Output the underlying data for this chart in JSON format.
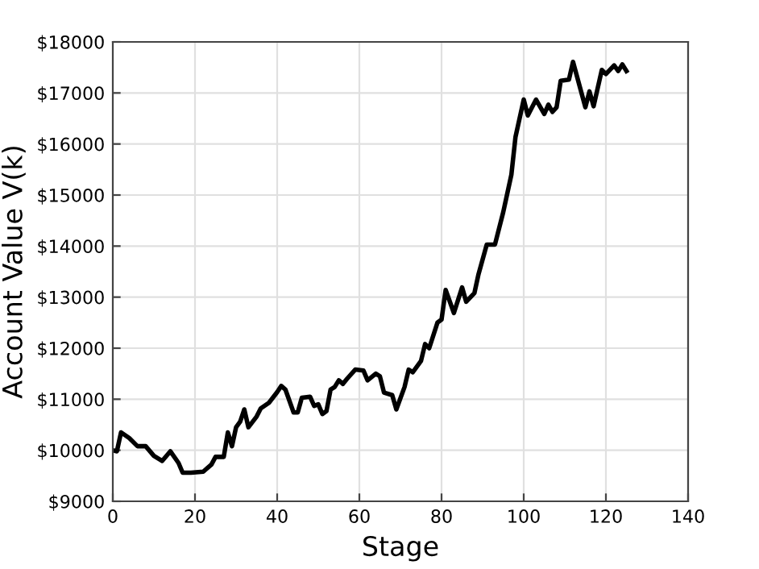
{
  "chart_data": {
    "type": "line",
    "xlabel": "Stage",
    "ylabel": "Account Value V(k)",
    "xlim": [
      0,
      140
    ],
    "xticks": [
      0,
      20,
      40,
      60,
      80,
      100,
      120,
      140
    ],
    "ylim": [
      9000,
      18000
    ],
    "yticks": [
      {
        "value": 9000,
        "label": "$9000"
      },
      {
        "value": 10000,
        "label": "$10000"
      },
      {
        "value": 11000,
        "label": "$11000"
      },
      {
        "value": 12000,
        "label": "$12000"
      },
      {
        "value": 13000,
        "label": "$13000"
      },
      {
        "value": 14000,
        "label": "$14000"
      },
      {
        "value": 15000,
        "label": "$15000"
      },
      {
        "value": 16000,
        "label": "$16000"
      },
      {
        "value": 17000,
        "label": "$17000"
      },
      {
        "value": 18000,
        "label": "$18000"
      }
    ],
    "grid": true,
    "marker": "none",
    "line_style": "solid",
    "series": [
      {
        "color": "#000000",
        "x": [
          0,
          1,
          2,
          4,
          6,
          8,
          10,
          12,
          14,
          16,
          17,
          19,
          22,
          24,
          25,
          27,
          28,
          29,
          30,
          31,
          32,
          33,
          35,
          36,
          38,
          40,
          41,
          42,
          44,
          45,
          46,
          48,
          49,
          50,
          51,
          52,
          53,
          54,
          55,
          56,
          57,
          59,
          61,
          62,
          64,
          65,
          66,
          68,
          69,
          71,
          72,
          73,
          75,
          76,
          77,
          79,
          80,
          81,
          83,
          85,
          86,
          88,
          89,
          91,
          93,
          95,
          97,
          98,
          100,
          101,
          103,
          105,
          106,
          107,
          108,
          109,
          111,
          112,
          115,
          116,
          117,
          119,
          120,
          122,
          123,
          124,
          125
        ],
        "values": [
          10000,
          9980,
          10350,
          10240,
          10080,
          10080,
          9890,
          9790,
          9980,
          9750,
          9560,
          9560,
          9580,
          9720,
          9870,
          9870,
          10350,
          10080,
          10450,
          10560,
          10800,
          10450,
          10660,
          10820,
          10930,
          11140,
          11260,
          11190,
          10740,
          10740,
          11030,
          11050,
          10870,
          10900,
          10710,
          10770,
          11190,
          11240,
          11370,
          11300,
          11400,
          11580,
          11560,
          11370,
          11500,
          11450,
          11130,
          11080,
          10800,
          11240,
          11580,
          11530,
          11750,
          12080,
          12000,
          12500,
          12560,
          13140,
          12690,
          13190,
          12910,
          13080,
          13450,
          14030,
          14030,
          14660,
          15400,
          16140,
          16870,
          16560,
          16870,
          16590,
          16770,
          16630,
          16720,
          17240,
          17260,
          17610,
          16720,
          17030,
          16740,
          17450,
          17370,
          17540,
          17430,
          17560,
          17430
        ]
      }
    ]
  }
}
